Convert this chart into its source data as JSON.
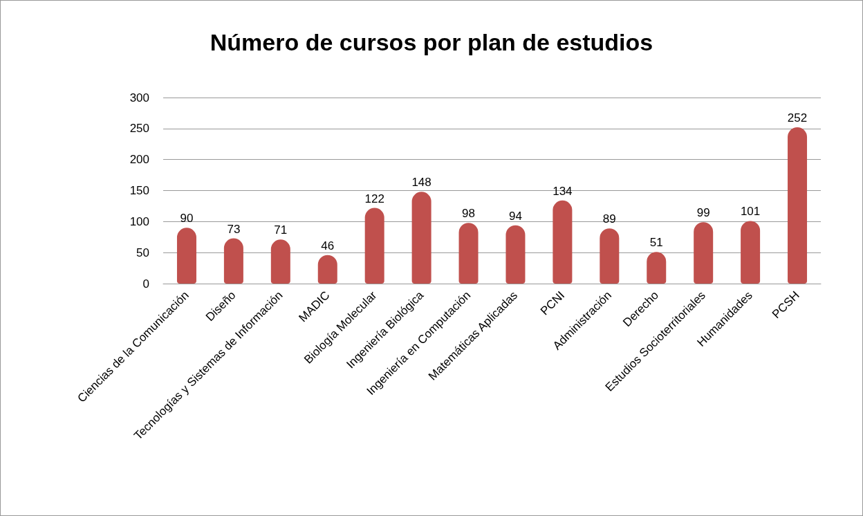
{
  "chart_data": {
    "type": "bar",
    "title": "Número de cursos por plan de estudios",
    "categories": [
      "Ciencias de la Comunicación",
      "Diseño",
      "Tecnologías y Sistemas de Información",
      "MADIC",
      "Biología Molecular",
      "Ingeniería Biológica",
      "Ingeniería en Computación",
      "Matemáticas Aplicadas",
      "PCNI",
      "Administración",
      "Derecho",
      "Estudios Socioterritoriales",
      "Humanidades",
      "PCSH"
    ],
    "values": [
      90,
      73,
      71,
      46,
      122,
      148,
      98,
      94,
      134,
      89,
      51,
      99,
      101,
      252
    ],
    "color": "#c0504d",
    "ylim": [
      0,
      300
    ],
    "yticks": [
      0,
      50,
      100,
      150,
      200,
      250,
      300
    ],
    "grid": "y",
    "data_labels": true
  }
}
